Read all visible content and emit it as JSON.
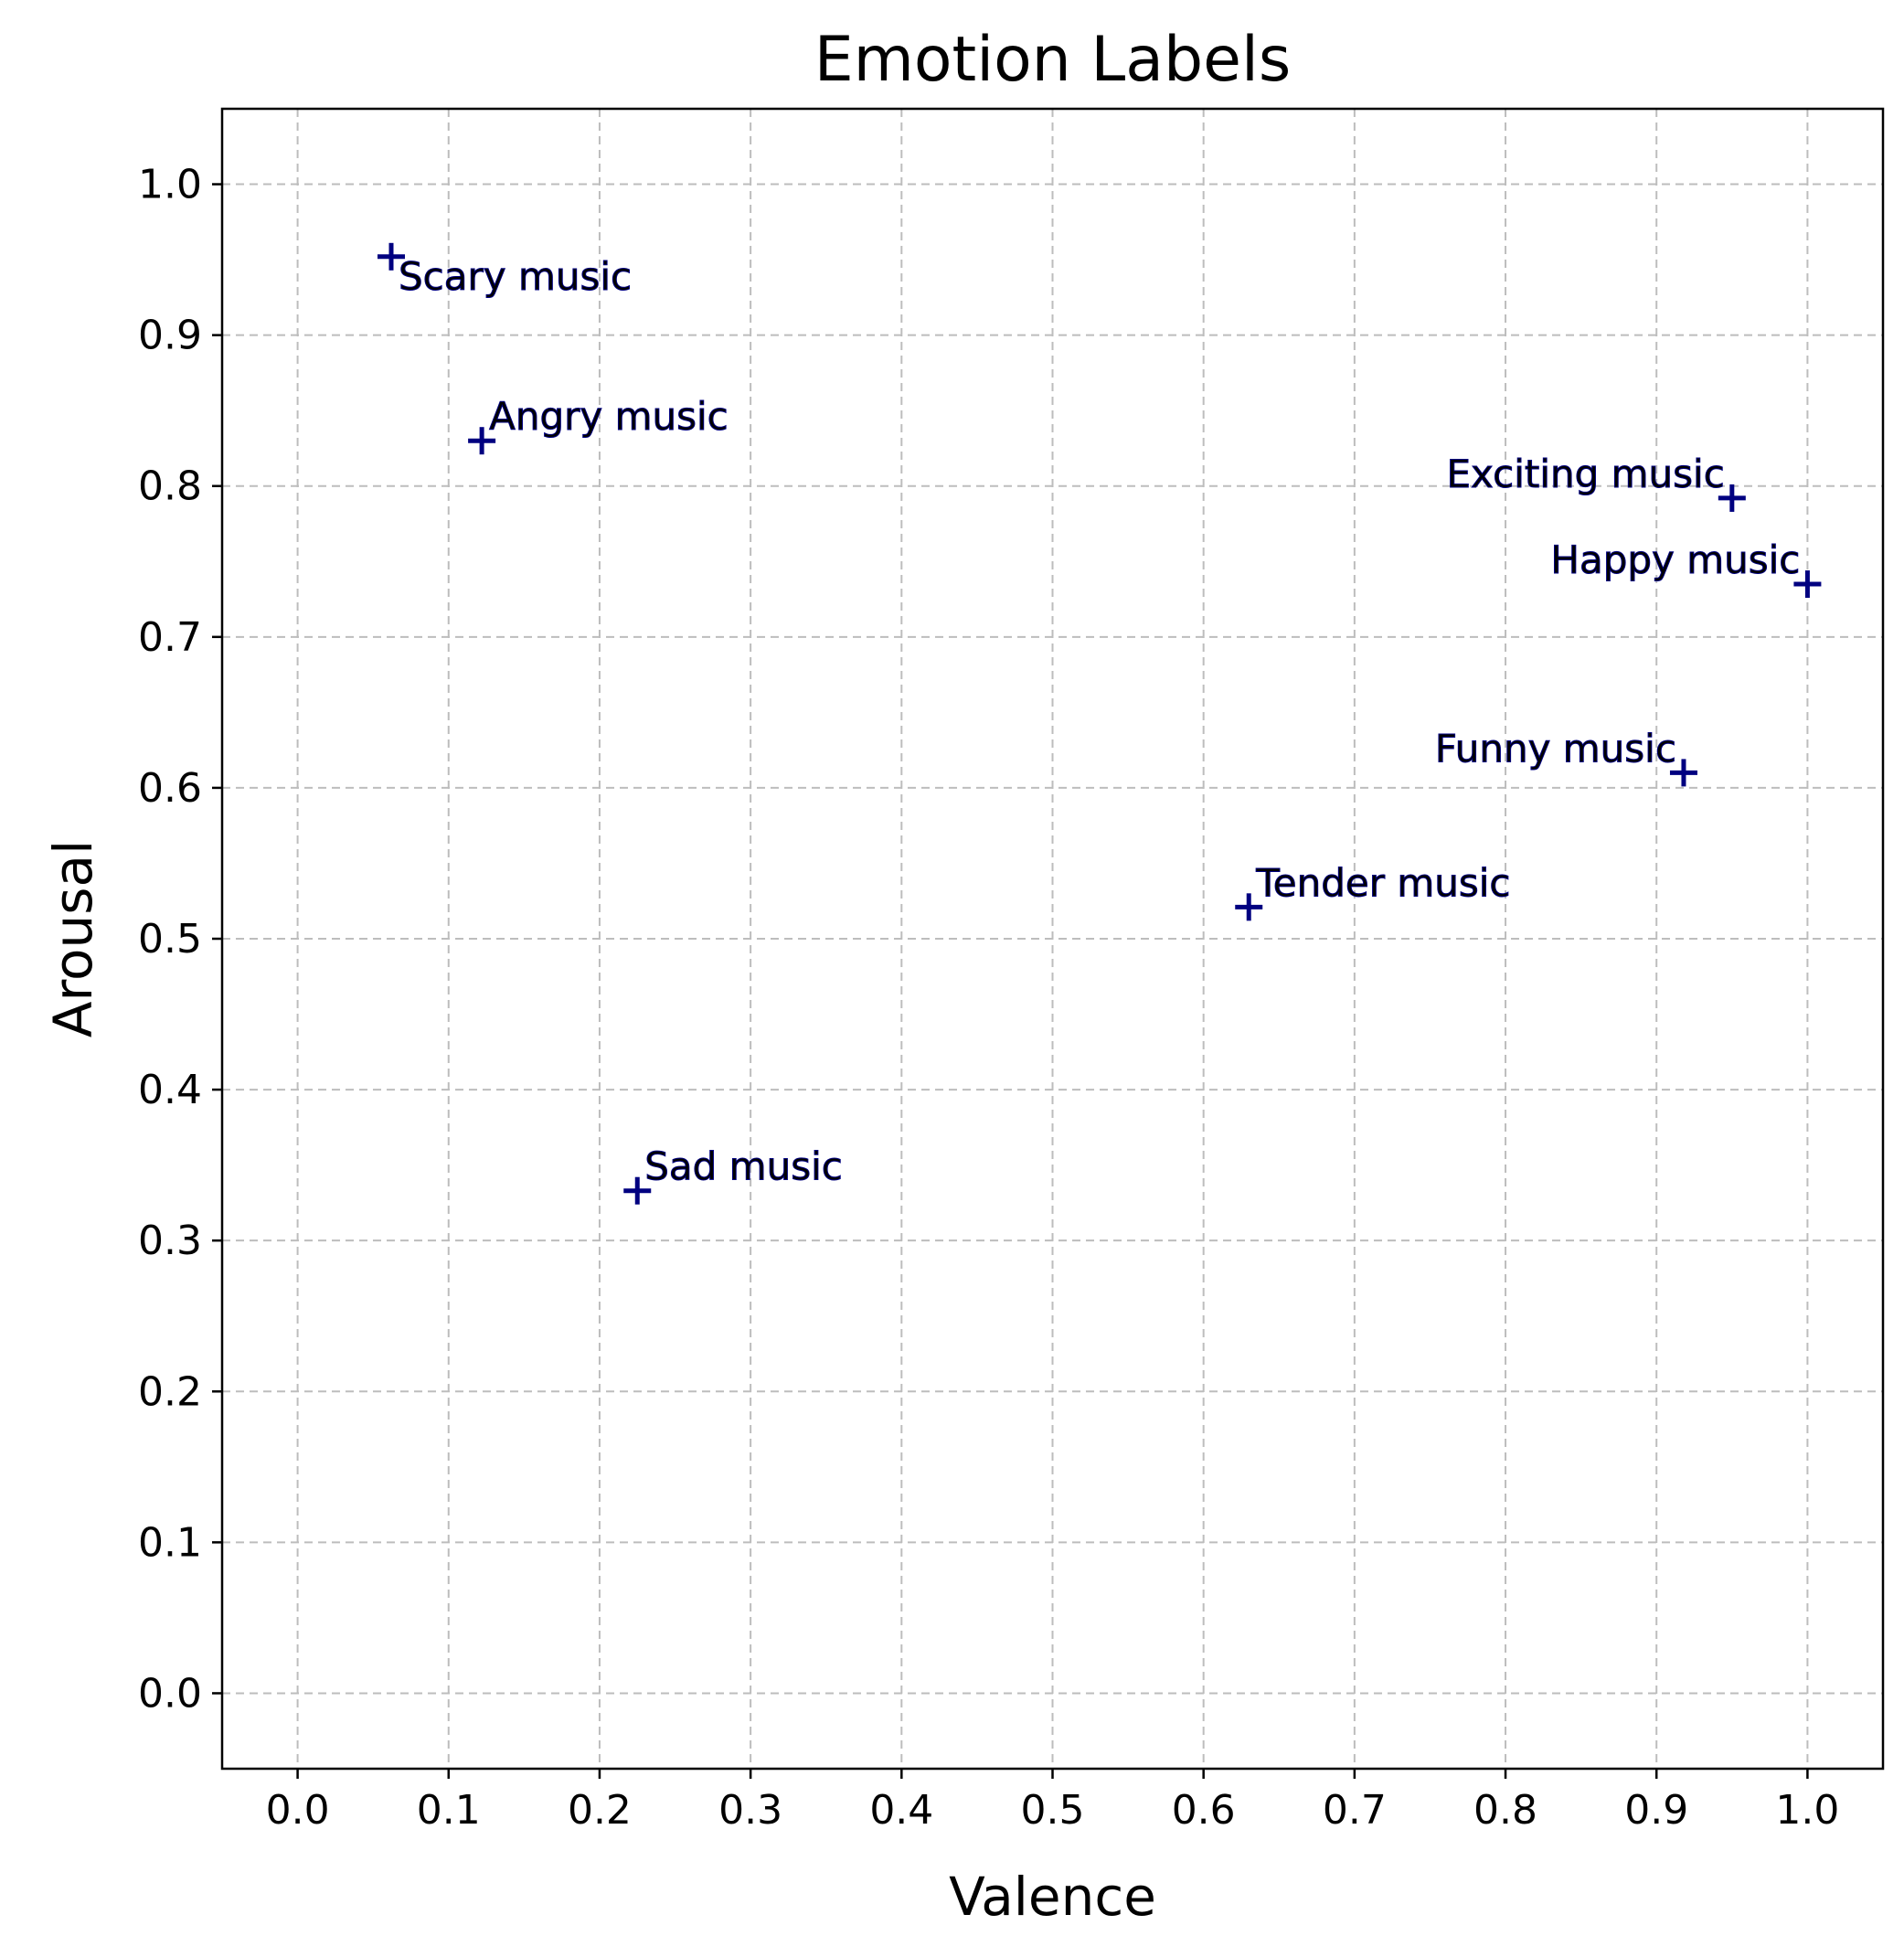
{
  "chart_data": {
    "type": "scatter",
    "title": "Emotion Labels",
    "xlabel": "Valence",
    "ylabel": "Arousal",
    "xlim": [
      -0.05,
      1.05
    ],
    "ylim": [
      -0.05,
      1.05
    ],
    "xticks": [
      0.0,
      0.1,
      0.2,
      0.3,
      0.4,
      0.5,
      0.6,
      0.7,
      0.8,
      0.9,
      1.0
    ],
    "yticks": [
      0.0,
      0.1,
      0.2,
      0.3,
      0.4,
      0.5,
      0.6,
      0.7,
      0.8,
      0.9,
      1.0
    ],
    "xtick_labels": [
      "0.0",
      "0.1",
      "0.2",
      "0.3",
      "0.4",
      "0.5",
      "0.6",
      "0.7",
      "0.8",
      "0.9",
      "1.0"
    ],
    "ytick_labels": [
      "0.0",
      "0.1",
      "0.2",
      "0.3",
      "0.4",
      "0.5",
      "0.6",
      "0.7",
      "0.8",
      "0.9",
      "1.0"
    ],
    "grid": true,
    "marker": "plus",
    "marker_color": "#000080",
    "grid_color": "#bdbdbd",
    "points": [
      {
        "label": "Scary music",
        "x": 0.062,
        "y": 0.952,
        "label_position": "below-right"
      },
      {
        "label": "Angry music",
        "x": 0.122,
        "y": 0.83,
        "label_position": "above-right"
      },
      {
        "label": "Exciting music",
        "x": 0.95,
        "y": 0.792,
        "label_position": "above-left"
      },
      {
        "label": "Happy music",
        "x": 1.0,
        "y": 0.735,
        "label_position": "above-left"
      },
      {
        "label": "Funny music",
        "x": 0.918,
        "y": 0.61,
        "label_position": "above-left"
      },
      {
        "label": "Tender music",
        "x": 0.63,
        "y": 0.521,
        "label_position": "above-right"
      },
      {
        "label": "Sad music",
        "x": 0.225,
        "y": 0.333,
        "label_position": "above-right"
      }
    ]
  }
}
